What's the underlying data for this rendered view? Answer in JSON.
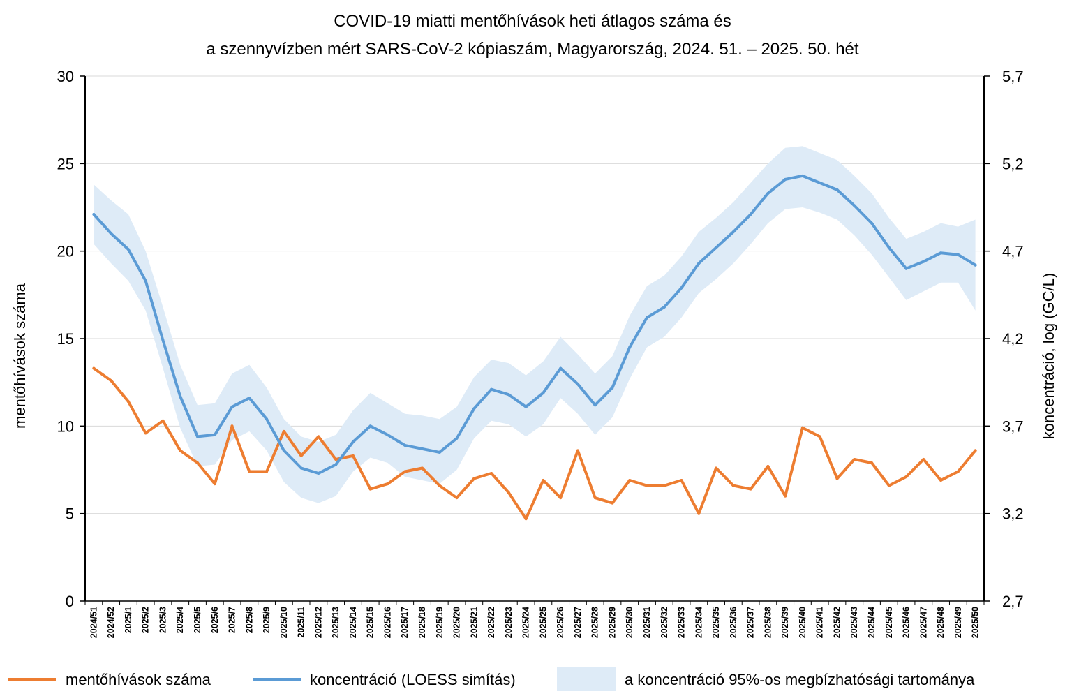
{
  "chart_data": {
    "type": "line",
    "title": [
      "COVID-19 miatti mentőhívások heti átlagos száma és",
      "a szennyvízben mért SARS-CoV-2 kópiaszám, Magyarország, 2024. 51. – 2025. 50. hét"
    ],
    "ylabel": "mentőhívások száma",
    "y2label": "koncentráció, log (GC/L)",
    "ylim": [
      0,
      30
    ],
    "y2lim": [
      2.7,
      5.7
    ],
    "yticks": [
      "0",
      "5",
      "10",
      "15",
      "20",
      "25",
      "30"
    ],
    "y2ticks": [
      "2,7",
      "3,2",
      "3,7",
      "4,2",
      "4,7",
      "5,2",
      "5,7"
    ],
    "grid": true,
    "legend_position": "bottom",
    "categories": [
      "2024/51",
      "2024/52",
      "2025/1",
      "2025/2",
      "2025/3",
      "2025/4",
      "2025/5",
      "2025/6",
      "2025/7",
      "2025/8",
      "2025/9",
      "2025/10",
      "2025/11",
      "2025/12",
      "2025/13",
      "2025/14",
      "2025/15",
      "2025/16",
      "2025/17",
      "2025/18",
      "2025/19",
      "2025/20",
      "2025/21",
      "2025/22",
      "2025/23",
      "2025/24",
      "2025/25",
      "2025/26",
      "2025/27",
      "2025/28",
      "2025/29",
      "2025/30",
      "2025/31",
      "2025/32",
      "2025/33",
      "2025/34",
      "2025/35",
      "2025/36",
      "2025/37",
      "2025/38",
      "2025/39",
      "2025/40",
      "2025/41",
      "2025/42",
      "2025/43",
      "2025/44",
      "2025/45",
      "2025/46",
      "2025/47",
      "2025/48",
      "2025/49",
      "2025/50"
    ],
    "series": [
      {
        "name": "mentőhívások száma",
        "axis": "left",
        "color": "#ED7D31",
        "values": [
          13.3,
          12.6,
          11.4,
          9.6,
          10.3,
          8.6,
          7.9,
          6.7,
          10.0,
          7.4,
          7.4,
          9.7,
          8.3,
          9.4,
          8.1,
          8.3,
          6.4,
          6.7,
          7.4,
          7.6,
          6.6,
          5.9,
          7.0,
          7.3,
          6.2,
          4.7,
          6.9,
          5.9,
          8.6,
          5.9,
          5.6,
          6.9,
          6.6,
          6.6,
          6.9,
          5.0,
          7.6,
          6.6,
          6.4,
          7.7,
          6.0,
          9.9,
          9.4,
          7.0,
          8.1,
          7.9,
          6.6,
          7.1,
          8.1,
          6.9,
          7.4,
          8.6
        ]
      },
      {
        "name": "koncentráció (LOESS simítás)",
        "axis": "right",
        "color": "#5B9BD5",
        "values": [
          4.91,
          4.8,
          4.71,
          4.53,
          4.19,
          3.87,
          3.64,
          3.65,
          3.81,
          3.86,
          3.74,
          3.56,
          3.46,
          3.43,
          3.48,
          3.61,
          3.7,
          3.65,
          3.59,
          3.57,
          3.55,
          3.63,
          3.8,
          3.91,
          3.88,
          3.81,
          3.89,
          4.03,
          3.94,
          3.82,
          3.92,
          4.15,
          4.32,
          4.38,
          4.49,
          4.63,
          4.72,
          4.81,
          4.91,
          5.03,
          5.11,
          5.13,
          5.09,
          5.05,
          4.96,
          4.86,
          4.72,
          4.6,
          4.64,
          4.69,
          4.68,
          4.62
        ]
      }
    ],
    "band": {
      "name": "a koncentráció 95%-os megbízhatósági tartománya",
      "axis": "right",
      "color": "#DEEBF7",
      "upper": [
        5.08,
        4.99,
        4.91,
        4.7,
        4.38,
        4.05,
        3.82,
        3.83,
        4.0,
        4.05,
        3.92,
        3.74,
        3.64,
        3.61,
        3.65,
        3.79,
        3.89,
        3.83,
        3.77,
        3.76,
        3.74,
        3.81,
        3.98,
        4.08,
        4.06,
        3.99,
        4.07,
        4.21,
        4.11,
        4.0,
        4.1,
        4.33,
        4.5,
        4.56,
        4.67,
        4.81,
        4.89,
        4.98,
        5.09,
        5.2,
        5.29,
        5.3,
        5.26,
        5.22,
        5.13,
        5.03,
        4.89,
        4.77,
        4.81,
        4.86,
        4.84,
        4.88
      ],
      "lower": [
        4.74,
        4.63,
        4.53,
        4.36,
        4.03,
        3.69,
        3.47,
        3.48,
        3.62,
        3.67,
        3.56,
        3.38,
        3.29,
        3.26,
        3.3,
        3.44,
        3.52,
        3.49,
        3.41,
        3.39,
        3.37,
        3.45,
        3.63,
        3.73,
        3.71,
        3.64,
        3.71,
        3.86,
        3.77,
        3.65,
        3.75,
        3.97,
        4.15,
        4.21,
        4.32,
        4.46,
        4.54,
        4.63,
        4.74,
        4.86,
        4.94,
        4.95,
        4.92,
        4.88,
        4.79,
        4.68,
        4.55,
        4.42,
        4.47,
        4.52,
        4.52,
        4.36
      ]
    }
  }
}
